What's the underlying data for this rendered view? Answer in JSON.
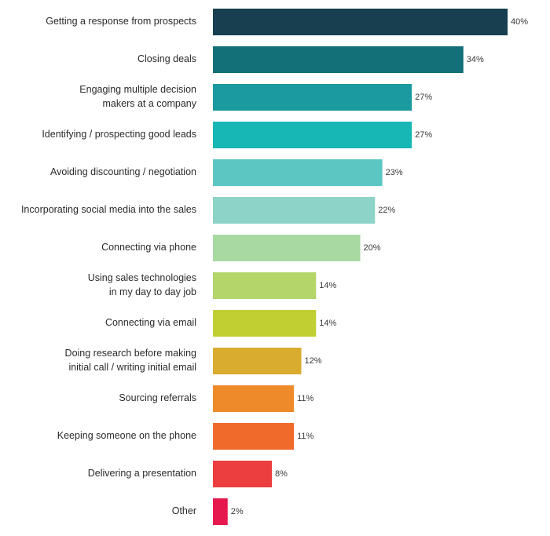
{
  "chart_data": {
    "type": "bar",
    "orientation": "horizontal",
    "categories": [
      "Getting a response from prospects",
      "Closing deals",
      "Engaging multiple decision makers at a company",
      "Identifying / prospecting good leads",
      "Avoiding discounting / negotiation",
      "Incorporating social media into the sales",
      "Connecting via phone",
      "Using sales technologies in my day to day job",
      "Connecting via email",
      "Doing research before making initial call / writing initial email",
      "Sourcing referrals",
      "Keeping someone on the phone",
      "Delivering a presentation",
      "Other"
    ],
    "label_lines": [
      [
        "Getting a response from prospects"
      ],
      [
        "Closing deals"
      ],
      [
        "Engaging multiple decision",
        "makers at a company"
      ],
      [
        "Identifying / prospecting good leads"
      ],
      [
        "Avoiding discounting / negotiation"
      ],
      [
        "Incorporating social media into the sales"
      ],
      [
        "Connecting via phone"
      ],
      [
        "Using sales technologies",
        "in my day to day job"
      ],
      [
        "Connecting via email"
      ],
      [
        "Doing research before making",
        "initial call / writing initial email"
      ],
      [
        "Sourcing referrals"
      ],
      [
        "Keeping someone on the phone"
      ],
      [
        "Delivering a presentation"
      ],
      [
        "Other"
      ]
    ],
    "values": [
      40,
      34,
      27,
      27,
      23,
      22,
      20,
      14,
      14,
      12,
      11,
      11,
      8,
      2
    ],
    "value_labels": [
      "40%",
      "34%",
      "27%",
      "27%",
      "23%",
      "22%",
      "20%",
      "14%",
      "14%",
      "12%",
      "11%",
      "11%",
      "8%",
      "2%"
    ],
    "colors": [
      "#173f4f",
      "#136f78",
      "#1b9aa0",
      "#17b7b6",
      "#5cc6c2",
      "#8dd3c8",
      "#a8d9a2",
      "#b3d56a",
      "#c2cf33",
      "#d9ab2f",
      "#ee8a2a",
      "#f06a2b",
      "#ec3d3f",
      "#e6194e"
    ],
    "xlim": [
      0,
      40
    ],
    "grid": false,
    "legend": false
  }
}
